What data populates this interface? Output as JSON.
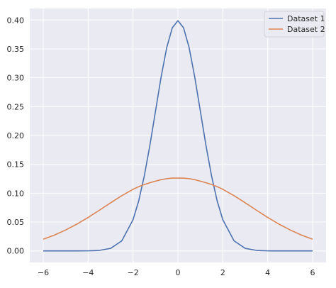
{
  "chart_data": {
    "type": "line",
    "title": "",
    "xlabel": "",
    "ylabel": "",
    "xlim": [
      -6.6,
      6.6
    ],
    "ylim": [
      -0.02,
      0.42
    ],
    "x_ticks": [
      -6,
      -4,
      -2,
      0,
      2,
      4,
      6
    ],
    "x_tick_labels": [
      "−6",
      "−4",
      "−2",
      "0",
      "2",
      "4",
      "6"
    ],
    "y_ticks": [
      0.0,
      0.05,
      0.1,
      0.15,
      0.2,
      0.25,
      0.3,
      0.35,
      0.4
    ],
    "y_tick_labels": [
      "0.00",
      "0.05",
      "0.10",
      "0.15",
      "0.20",
      "0.25",
      "0.30",
      "0.35",
      "0.40"
    ],
    "grid": true,
    "legend_position": "top-right",
    "background_color": "#EAEAF2",
    "grid_color": "#FFFFFF",
    "x": [
      -6,
      -5.5,
      -5,
      -4.5,
      -4,
      -3.5,
      -3,
      -2.5,
      -2,
      -1.75,
      -1.5,
      -1.25,
      -1,
      -0.75,
      -0.5,
      -0.25,
      0,
      0.25,
      0.5,
      0.75,
      1,
      1.25,
      1.5,
      1.75,
      2,
      2.5,
      3,
      3.5,
      4,
      4.5,
      5,
      5.5,
      6
    ],
    "series": [
      {
        "name": "Dataset 1",
        "color": "#4C72B0",
        "values": [
          0.0,
          0.0,
          0.0,
          2e-05,
          0.00013,
          0.00087,
          0.0044,
          0.0175,
          0.054,
          0.0863,
          0.1295,
          0.1826,
          0.242,
          0.3011,
          0.3521,
          0.3867,
          0.3989,
          0.3867,
          0.3521,
          0.3011,
          0.242,
          0.1826,
          0.1295,
          0.0863,
          0.054,
          0.0175,
          0.0044,
          0.00087,
          0.00013,
          2e-05,
          0.0,
          0.0,
          0.0
        ]
      },
      {
        "name": "Dataset 2",
        "color": "#DD8452",
        "values": [
          0.0203,
          0.0275,
          0.0363,
          0.0465,
          0.058,
          0.0705,
          0.0833,
          0.0957,
          0.1067,
          0.1113,
          0.1151,
          0.1181,
          0.1209,
          0.1234,
          0.1252,
          0.1262,
          0.1262,
          0.1262,
          0.1252,
          0.1234,
          0.1209,
          0.1181,
          0.1151,
          0.1113,
          0.1067,
          0.0957,
          0.0833,
          0.0705,
          0.058,
          0.0465,
          0.0363,
          0.0275,
          0.0203
        ]
      }
    ]
  }
}
